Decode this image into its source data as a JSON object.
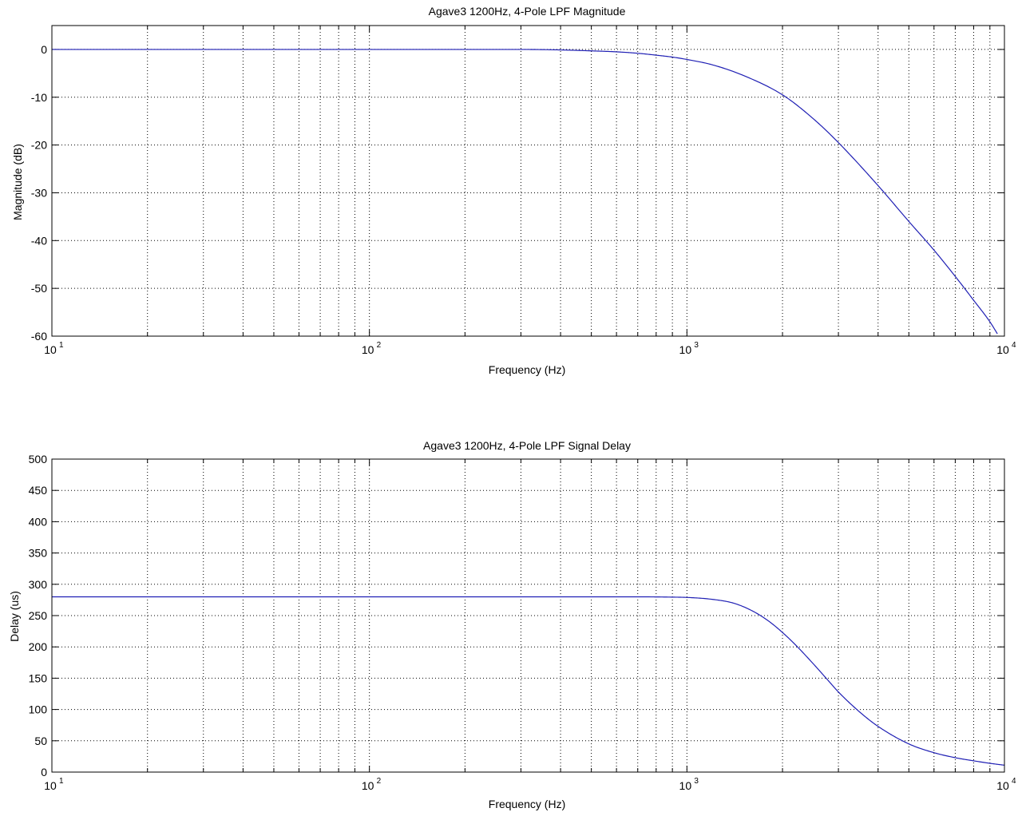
{
  "colors": {
    "series": "#1f1fb4",
    "axes": "#000000",
    "background": "#ffffff"
  },
  "chart_data": [
    {
      "type": "line",
      "title": "Agave3 1200Hz, 4-Pole LPF Magnitude",
      "xlabel": "Frequency (Hz)",
      "ylabel": "Magnitude (dB)",
      "xscale": "log",
      "xlim": [
        10,
        10000
      ],
      "ylim": [
        -60,
        5
      ],
      "grid": true,
      "x_ticks": [
        {
          "base": "10",
          "exp": "1"
        },
        {
          "base": "10",
          "exp": "2"
        },
        {
          "base": "10",
          "exp": "3"
        },
        {
          "base": "10",
          "exp": "4"
        }
      ],
      "y_ticks": [
        "0",
        "-10",
        "-20",
        "-30",
        "-40",
        "-50",
        "-60"
      ],
      "series": [
        {
          "x": [
            10,
            20,
            50,
            100,
            200,
            300,
            400,
            500,
            600,
            700,
            800,
            900,
            1000,
            1200,
            1500,
            2000,
            2500,
            3000,
            4000,
            5000,
            6000,
            7000,
            8000,
            9000,
            9500
          ],
          "values": [
            0,
            0,
            0,
            0,
            0,
            0,
            -0.1,
            -0.3,
            -0.5,
            -0.8,
            -1.2,
            -1.6,
            -2.1,
            -3.2,
            -5.4,
            -9.5,
            -14.5,
            -19.5,
            -28.5,
            -36,
            -42,
            -47.5,
            -52.5,
            -57,
            -59.5
          ]
        }
      ]
    },
    {
      "type": "line",
      "title": "Agave3 1200Hz, 4-Pole LPF Signal Delay",
      "xlabel": "Frequency (Hz)",
      "ylabel": "Delay (us)",
      "xscale": "log",
      "xlim": [
        10,
        10000
      ],
      "ylim": [
        0,
        500
      ],
      "grid": true,
      "x_ticks": [
        {
          "base": "10",
          "exp": "1"
        },
        {
          "base": "10",
          "exp": "2"
        },
        {
          "base": "10",
          "exp": "3"
        },
        {
          "base": "10",
          "exp": "4"
        }
      ],
      "y_ticks": [
        "500",
        "450",
        "400",
        "350",
        "300",
        "250",
        "200",
        "150",
        "100",
        "50",
        "0"
      ],
      "series": [
        {
          "x": [
            10,
            50,
            100,
            300,
            500,
            700,
            900,
            1000,
            1200,
            1400,
            1600,
            1800,
            2000,
            2200,
            2500,
            2800,
            3000,
            3500,
            4000,
            5000,
            6000,
            7000,
            8000,
            9000,
            10000
          ],
          "values": [
            280,
            280,
            280,
            280,
            280,
            280,
            279.5,
            279,
            276,
            270,
            258,
            242,
            223,
            203,
            173,
            145,
            128,
            96,
            73,
            45,
            31,
            23,
            18,
            14,
            11
          ]
        }
      ]
    }
  ]
}
